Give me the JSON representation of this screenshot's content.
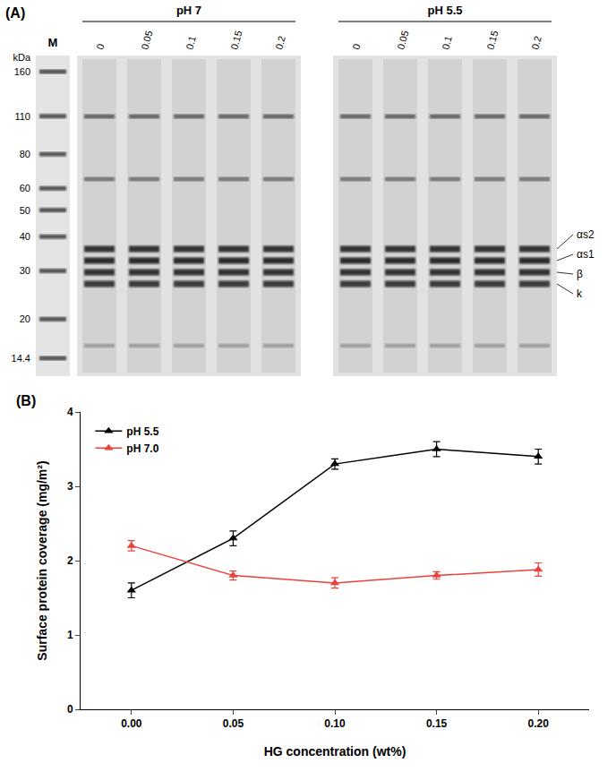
{
  "gel": {
    "label": "(A)",
    "marker_lane": "M",
    "marker_unit": "kDa",
    "marker_sizes": [
      160,
      110,
      80,
      60,
      50,
      40,
      30,
      20,
      14.4
    ],
    "groups": [
      {
        "title": "pH 7",
        "lanes": [
          0,
          0.05,
          0.1,
          0.15,
          0.2
        ]
      },
      {
        "title": "pH 5.5",
        "lanes": [
          0,
          0.05,
          0.1,
          0.15,
          0.2
        ]
      }
    ],
    "band_labels": [
      "αs2",
      "αs1",
      "β",
      "k"
    ]
  },
  "chart_data": {
    "type": "line",
    "label": "(B)",
    "x_title": "HG concentration (wt%)",
    "y_title": "Surface protein coverage (mg/m²)",
    "x": [
      0,
      0.05,
      0.1,
      0.15,
      0.2
    ],
    "series": [
      {
        "name": "pH 5.5",
        "color": "#000000",
        "marker": "triangle-up",
        "values": [
          1.6,
          2.3,
          3.3,
          3.5,
          3.4
        ],
        "errors": [
          0.1,
          0.1,
          0.07,
          0.1,
          0.1
        ]
      },
      {
        "name": "pH 7.0",
        "color": "#e8423a",
        "marker": "triangle-up",
        "values": [
          2.2,
          1.8,
          1.7,
          1.8,
          1.88
        ],
        "errors": [
          0.07,
          0.06,
          0.07,
          0.05,
          0.09
        ]
      }
    ],
    "xlim": [
      -0.025,
      0.225
    ],
    "xticks": [
      {
        "value": 0,
        "label": "0.00"
      },
      {
        "value": 0.05,
        "label": "0.05"
      },
      {
        "value": 0.1,
        "label": "0.10"
      },
      {
        "value": 0.15,
        "label": "0.15"
      },
      {
        "value": 0.2,
        "label": "0.20"
      }
    ],
    "ylim": [
      0,
      4
    ],
    "yticks": [
      0,
      1,
      2,
      3,
      4
    ],
    "grid": false,
    "legend": "upper left"
  }
}
